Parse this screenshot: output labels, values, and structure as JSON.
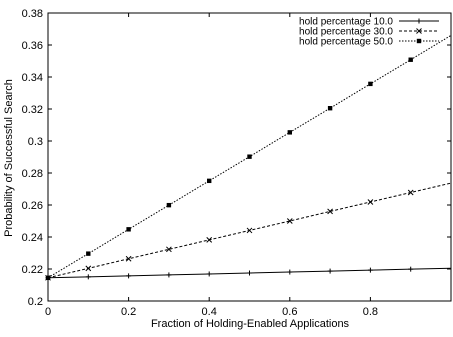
{
  "chart_data": {
    "type": "line",
    "xlabel": "Fraction of Holding-Enabled Applications",
    "ylabel": "Probability of Successful Search",
    "xlim": [
      0,
      1.0
    ],
    "ylim": [
      0.2,
      0.38
    ],
    "x_ticks": [
      "0",
      "0.2",
      "0.4",
      "0.6",
      "0.8"
    ],
    "y_ticks": [
      "0.2",
      "0.22",
      "0.24",
      "0.26",
      "0.28",
      "0.3",
      "0.32",
      "0.34",
      "0.36",
      "0.38"
    ],
    "grid": false,
    "legend_position": "top-right",
    "x": [
      0,
      0.1,
      0.2,
      0.3,
      0.4,
      0.5,
      0.6,
      0.7,
      0.8,
      0.9,
      1.0
    ],
    "series": [
      {
        "name": "hold percentage 10.0",
        "marker": "plus",
        "line_style": "solid",
        "values": [
          0.2145,
          0.2151,
          0.2157,
          0.2163,
          0.2169,
          0.2175,
          0.2181,
          0.2187,
          0.2193,
          0.2199,
          0.2205
        ]
      },
      {
        "name": "hold percentage 30.0",
        "marker": "cross",
        "line_style": "dashed",
        "values": [
          0.2145,
          0.2204,
          0.2264,
          0.2323,
          0.2382,
          0.2441,
          0.25,
          0.256,
          0.2619,
          0.2678,
          0.2737
        ]
      },
      {
        "name": "hold percentage 50.0",
        "marker": "square",
        "line_style": "dotted",
        "values": [
          0.2145,
          0.2296,
          0.2448,
          0.2599,
          0.2751,
          0.2902,
          0.3054,
          0.3205,
          0.3357,
          0.3508,
          0.366
        ]
      }
    ]
  }
}
